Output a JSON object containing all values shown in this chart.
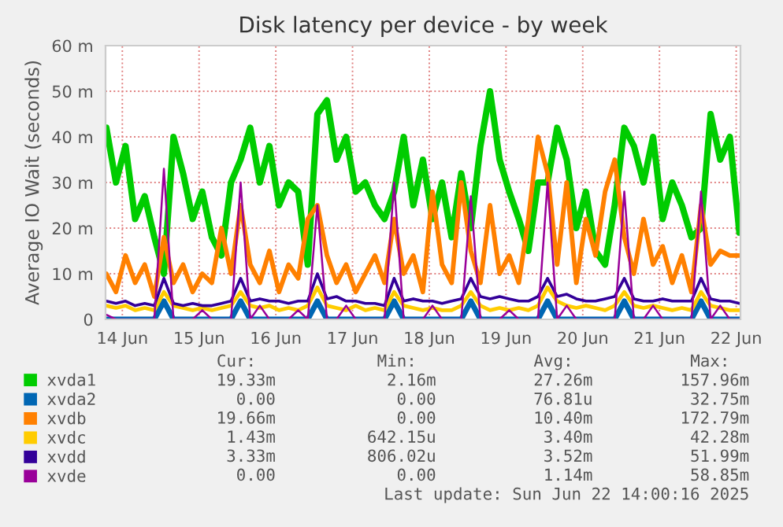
{
  "chart_data": {
    "type": "line",
    "title": "Disk latency per device - by week",
    "ylabel": "Average IO Wait (seconds)",
    "x": [
      "2025-06-14T07:00",
      "2025-06-14T10:00",
      "2025-06-14T13:00",
      "2025-06-14T16:00",
      "2025-06-14T19:00",
      "2025-06-14T22:00",
      "2025-06-15T01:00",
      "2025-06-15T04:00",
      "2025-06-15T07:00",
      "2025-06-15T10:00",
      "2025-06-15T13:00",
      "2025-06-15T16:00",
      "2025-06-15T19:00",
      "2025-06-15T22:00",
      "2025-06-16T01:00",
      "2025-06-16T04:00",
      "2025-06-16T07:00",
      "2025-06-16T10:00",
      "2025-06-16T13:00",
      "2025-06-16T16:00",
      "2025-06-16T19:00",
      "2025-06-16T22:00",
      "2025-06-17T01:00",
      "2025-06-17T04:00",
      "2025-06-17T07:00",
      "2025-06-17T10:00",
      "2025-06-17T13:00",
      "2025-06-17T16:00",
      "2025-06-17T19:00",
      "2025-06-17T22:00",
      "2025-06-18T01:00",
      "2025-06-18T04:00",
      "2025-06-18T07:00",
      "2025-06-18T10:00",
      "2025-06-18T13:00",
      "2025-06-18T16:00",
      "2025-06-18T19:00",
      "2025-06-18T22:00",
      "2025-06-19T01:00",
      "2025-06-19T04:00",
      "2025-06-19T07:00",
      "2025-06-19T10:00",
      "2025-06-19T13:00",
      "2025-06-19T16:00",
      "2025-06-19T19:00",
      "2025-06-19T22:00",
      "2025-06-20T01:00",
      "2025-06-20T04:00",
      "2025-06-20T07:00",
      "2025-06-20T10:00",
      "2025-06-20T13:00",
      "2025-06-20T16:00",
      "2025-06-20T19:00",
      "2025-06-20T22:00",
      "2025-06-21T01:00",
      "2025-06-21T04:00",
      "2025-06-21T07:00",
      "2025-06-21T10:00",
      "2025-06-21T13:00",
      "2025-06-21T16:00",
      "2025-06-21T19:00",
      "2025-06-21T22:00",
      "2025-06-22T01:00",
      "2025-06-22T04:00",
      "2025-06-22T07:00",
      "2025-06-22T10:00",
      "2025-06-22T13:00"
    ],
    "series": [
      {
        "name": "xvda1",
        "color": "#00cc00",
        "values": [
          42,
          30,
          38,
          22,
          27,
          18,
          10,
          40,
          32,
          22,
          28,
          18,
          14,
          30,
          35,
          42,
          30,
          38,
          25,
          30,
          28,
          12,
          45,
          48,
          35,
          40,
          28,
          30,
          25,
          22,
          28,
          40,
          25,
          35,
          22,
          30,
          18,
          32,
          20,
          38,
          50,
          35,
          28,
          22,
          15,
          30,
          30,
          42,
          35,
          20,
          28,
          15,
          12,
          25,
          42,
          38,
          30,
          40,
          22,
          30,
          25,
          18,
          20,
          45,
          35,
          40,
          19
        ]
      },
      {
        "name": "xvda2",
        "color": "#0066b3",
        "values": [
          0,
          0,
          0,
          0,
          0,
          0,
          4,
          0,
          0,
          0,
          0,
          0,
          0,
          0,
          4,
          0,
          0,
          0,
          0,
          0,
          0,
          0,
          4,
          0,
          0,
          0,
          0,
          0,
          0,
          0,
          4,
          0,
          0,
          0,
          0,
          0,
          0,
          0,
          4,
          0,
          0,
          0,
          0,
          0,
          0,
          0,
          4,
          0,
          0,
          0,
          0,
          0,
          0,
          0,
          4,
          0,
          0,
          0,
          0,
          0,
          0,
          0,
          4,
          0,
          0,
          0,
          0
        ]
      },
      {
        "name": "xvdb",
        "color": "#ff8000",
        "values": [
          10,
          6,
          14,
          8,
          12,
          5,
          18,
          8,
          12,
          6,
          10,
          8,
          20,
          10,
          25,
          12,
          8,
          15,
          6,
          12,
          9,
          22,
          25,
          14,
          8,
          12,
          6,
          10,
          14,
          8,
          22,
          10,
          14,
          6,
          28,
          12,
          8,
          30,
          15,
          8,
          25,
          10,
          14,
          8,
          22,
          40,
          32,
          12,
          30,
          8,
          22,
          14,
          28,
          35,
          18,
          10,
          22,
          12,
          16,
          8,
          14,
          6,
          25,
          12,
          15,
          14,
          14
        ]
      },
      {
        "name": "xvdc",
        "color": "#ffcc00",
        "values": [
          3,
          2.5,
          3,
          2,
          2.5,
          2,
          6,
          3,
          2.5,
          2,
          2.5,
          2,
          2.5,
          3,
          6,
          3,
          2.5,
          3,
          2,
          2.5,
          2,
          3,
          7,
          3,
          2.5,
          2,
          3,
          2,
          2.5,
          2,
          6,
          3,
          2.5,
          2,
          2.5,
          2,
          2,
          3,
          6,
          3,
          2,
          2.5,
          2,
          2.5,
          2,
          3,
          7,
          4,
          3,
          2.5,
          3,
          2.5,
          2,
          3,
          6,
          3,
          2.5,
          3,
          2.5,
          2,
          2.5,
          2,
          6,
          3,
          2.5,
          2,
          2
        ]
      },
      {
        "name": "xvdd",
        "color": "#330099",
        "values": [
          4,
          3.5,
          4,
          3,
          3.5,
          3,
          9,
          3.5,
          3,
          3.5,
          3,
          3,
          3.5,
          4,
          9,
          4,
          4.5,
          4,
          4,
          3.5,
          4,
          4,
          10,
          4.5,
          5,
          4,
          4,
          3.5,
          3.5,
          3,
          9,
          4,
          4.5,
          4,
          4,
          3.5,
          4,
          4.5,
          9,
          5,
          4.5,
          5,
          4.5,
          4,
          4,
          5,
          9,
          5,
          5.5,
          4.5,
          4,
          4,
          4.5,
          5,
          9,
          4.5,
          4,
          4,
          4.5,
          4,
          4,
          4,
          9,
          4.5,
          4,
          4,
          3.5
        ]
      },
      {
        "name": "xvde",
        "color": "#990099",
        "values": [
          1,
          0,
          0,
          0,
          0,
          0,
          33,
          0,
          0,
          0,
          2,
          0,
          0,
          0,
          30,
          0,
          3,
          0,
          0,
          0,
          2,
          0,
          25,
          0,
          0,
          3,
          0,
          0,
          0,
          0,
          30,
          0,
          0,
          0,
          3,
          0,
          0,
          0,
          27,
          0,
          0,
          0,
          2,
          0,
          0,
          0,
          30,
          0,
          3,
          0,
          0,
          0,
          0,
          0,
          28,
          0,
          0,
          3,
          0,
          0,
          0,
          0,
          28,
          0,
          3,
          0,
          0
        ]
      }
    ],
    "xlim": [
      "2025-06-14T06:45",
      "2025-06-22T13:20"
    ],
    "xticks": [
      {
        "value": "2025-06-14T12:00",
        "label": "14 Jun"
      },
      {
        "value": "2025-06-15T12:00",
        "label": "15 Jun"
      },
      {
        "value": "2025-06-16T12:00",
        "label": "16 Jun"
      },
      {
        "value": "2025-06-17T12:00",
        "label": "17 Jun"
      },
      {
        "value": "2025-06-18T12:00",
        "label": "18 Jun"
      },
      {
        "value": "2025-06-19T12:00",
        "label": "19 Jun"
      },
      {
        "value": "2025-06-20T12:00",
        "label": "20 Jun"
      },
      {
        "value": "2025-06-21T12:00",
        "label": "21 Jun"
      },
      {
        "value": "2025-06-22T12:00",
        "label": "22 Jun"
      }
    ],
    "ylim": [
      0,
      60
    ],
    "yticks": [
      0,
      {
        "value": 10,
        "label": "10 m"
      },
      {
        "value": 20,
        "label": "20 m"
      },
      {
        "value": 30,
        "label": "30 m"
      },
      {
        "value": 40,
        "label": "40 m"
      },
      {
        "value": 50,
        "label": "50 m"
      },
      {
        "value": 60,
        "label": "60 m"
      }
    ],
    "grid": true,
    "legend": "bottom",
    "marker": "none",
    "line_style": "solid",
    "annotations": [
      "Cur:",
      "Min:",
      "Avg:",
      "Max:",
      "19.33m",
      "2.16m",
      "27.26m",
      "157.96m",
      "0.00",
      "0.00",
      "76.81u",
      "32.75m",
      "19.66m",
      "0.00",
      "10.40m",
      "172.79m",
      "1.43m",
      "642.15u",
      "3.40m",
      "42.28m",
      "3.33m",
      "806.02u",
      "3.52m",
      "51.99m",
      "0.00",
      "0.00",
      "1.14m",
      "58.85m",
      "Last update: Sun Jun 22 14:00:16 2025"
    ]
  }
}
